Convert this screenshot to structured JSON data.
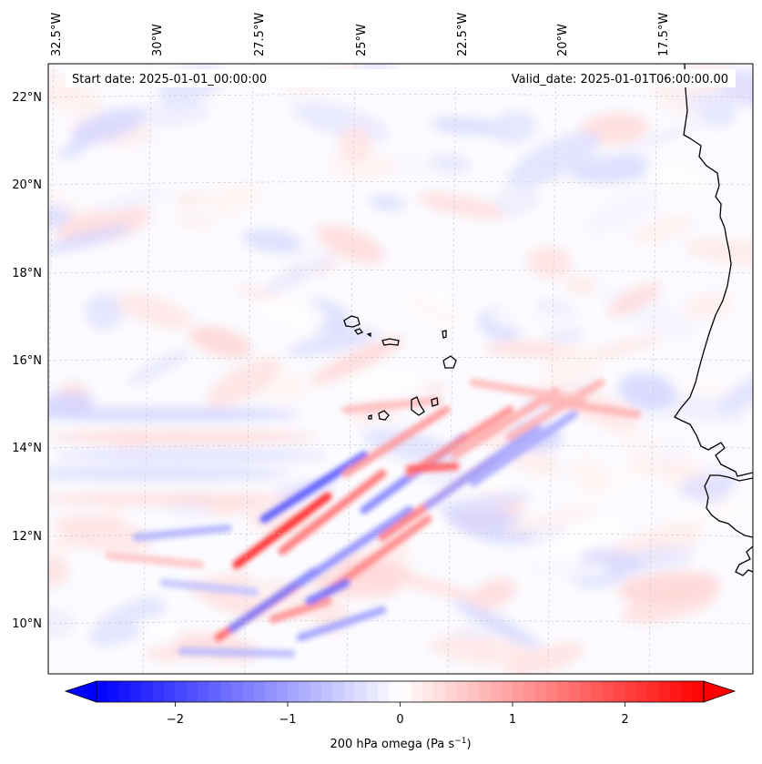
{
  "map": {
    "start_date": "Start date: 2025-01-01_00:00:00",
    "valid_date": "Valid_date: 2025-01-01T06:00:00.00",
    "lon_labels": [
      "32.5°W",
      "30°W",
      "27.5°W",
      "25°W",
      "22.5°W",
      "20°W",
      "17.5°W"
    ],
    "lat_labels": [
      "22°N",
      "20°N",
      "18°N",
      "16°N",
      "14°N",
      "12°N",
      "10°N"
    ],
    "variable": "200 hPa omega",
    "units": "Pa s",
    "units_exponent": "−1",
    "colormap": "bwr",
    "colormap_colors": {
      "low": "#0000ff",
      "mid": "#ffffff",
      "high": "#ff0000"
    },
    "value_range": [
      -2.7,
      2.7
    ],
    "extend": "both",
    "coastline_color": "#000000",
    "gridline_style": "dashed",
    "colorbar_ticks": [
      {
        "value": -2,
        "label": "−2"
      },
      {
        "value": -1,
        "label": "−1"
      },
      {
        "value": 0,
        "label": "0"
      },
      {
        "value": 1,
        "label": "1"
      },
      {
        "value": 2,
        "label": "2"
      }
    ]
  }
}
